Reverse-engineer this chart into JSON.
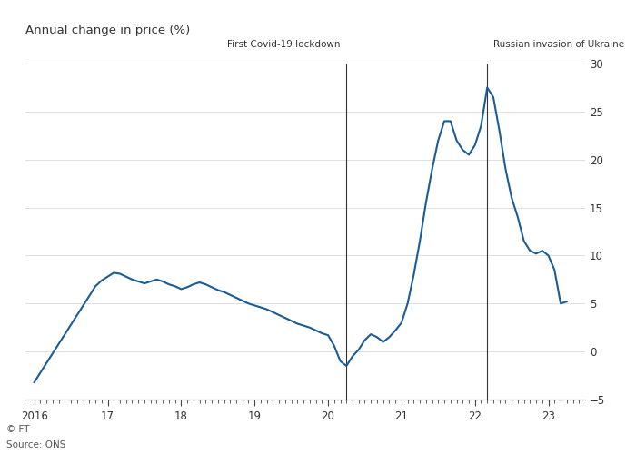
{
  "title": "Annual change in price (%)",
  "source_line1": "Source: ONS",
  "source_line2": "© FT",
  "covid_line_x": 2020.25,
  "covid_label": "First Covid-19 lockdown",
  "russia_line_x": 2022.17,
  "russia_label": "Russian invasion of Ukraine",
  "xlim": [
    2015.88,
    2023.5
  ],
  "ylim": [
    -5,
    30
  ],
  "yticks": [
    -5,
    0,
    5,
    10,
    15,
    20,
    25,
    30
  ],
  "xticks": [
    2016,
    2017,
    2018,
    2019,
    2020,
    2021,
    2022,
    2023
  ],
  "xticklabels": [
    "2016",
    "17",
    "18",
    "19",
    "20",
    "21",
    "22",
    "23"
  ],
  "line_color": "#1a5c96",
  "background_color": "#ffffff",
  "grid_color": "#e0e0e0",
  "vline_color": "#333333",
  "text_color": "#333333",
  "label_color": "#666666",
  "data_x": [
    2016.0,
    2016.083,
    2016.167,
    2016.25,
    2016.333,
    2016.417,
    2016.5,
    2016.583,
    2016.667,
    2016.75,
    2016.833,
    2016.917,
    2017.0,
    2017.083,
    2017.167,
    2017.25,
    2017.333,
    2017.417,
    2017.5,
    2017.583,
    2017.667,
    2017.75,
    2017.833,
    2017.917,
    2018.0,
    2018.083,
    2018.167,
    2018.25,
    2018.333,
    2018.417,
    2018.5,
    2018.583,
    2018.667,
    2018.75,
    2018.833,
    2018.917,
    2019.0,
    2019.083,
    2019.167,
    2019.25,
    2019.333,
    2019.417,
    2019.5,
    2019.583,
    2019.667,
    2019.75,
    2019.833,
    2019.917,
    2020.0,
    2020.083,
    2020.167,
    2020.25,
    2020.333,
    2020.417,
    2020.5,
    2020.583,
    2020.667,
    2020.75,
    2020.833,
    2020.917,
    2021.0,
    2021.083,
    2021.167,
    2021.25,
    2021.333,
    2021.417,
    2021.5,
    2021.583,
    2021.667,
    2021.75,
    2021.833,
    2021.917,
    2022.0,
    2022.083,
    2022.167,
    2022.25,
    2022.333,
    2022.417,
    2022.5,
    2022.583,
    2022.667,
    2022.75,
    2022.833,
    2022.917,
    2023.0,
    2023.083,
    2023.167,
    2023.25
  ],
  "data_y": [
    -3.2,
    -2.2,
    -1.2,
    -0.2,
    0.8,
    1.8,
    2.8,
    3.8,
    4.8,
    5.8,
    6.8,
    7.4,
    7.8,
    8.2,
    8.1,
    7.8,
    7.5,
    7.3,
    7.1,
    7.3,
    7.5,
    7.3,
    7.0,
    6.8,
    6.5,
    6.7,
    7.0,
    7.2,
    7.0,
    6.7,
    6.4,
    6.2,
    5.9,
    5.6,
    5.3,
    5.0,
    4.8,
    4.6,
    4.4,
    4.1,
    3.8,
    3.5,
    3.2,
    2.9,
    2.7,
    2.5,
    2.2,
    1.9,
    1.7,
    0.6,
    -1.0,
    -1.5,
    -0.5,
    0.2,
    1.2,
    1.8,
    1.5,
    1.0,
    1.5,
    2.2,
    3.0,
    5.0,
    8.0,
    11.5,
    15.5,
    19.0,
    22.0,
    24.0,
    24.0,
    22.0,
    21.0,
    20.5,
    21.5,
    23.5,
    27.5,
    26.5,
    23.0,
    19.0,
    16.0,
    14.0,
    11.5,
    10.5,
    10.2,
    10.5,
    10.0,
    8.5,
    5.0,
    5.2
  ]
}
